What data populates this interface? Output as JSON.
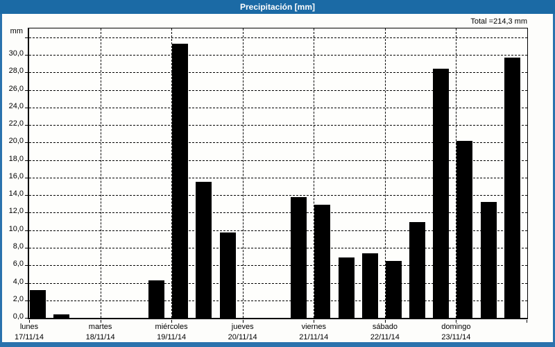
{
  "window": {
    "title": "Precipitación [mm]"
  },
  "summary": {
    "total_label": "Total =214,3 mm"
  },
  "colors": {
    "titlebar_bg": "#1b6aa5",
    "frame_border": "#2a72ad",
    "title_text": "#ffffff",
    "bar": "#000000",
    "grid": "#000000",
    "plot_bg": "#fefefc"
  },
  "chart_data": {
    "type": "bar",
    "title": "Precipitación [mm]",
    "xlabel": "",
    "ylabel": "mm",
    "ylim": [
      0,
      33
    ],
    "ytick_step": 2,
    "grid": true,
    "legend": false,
    "bars_per_day": 3,
    "total_mm": 214.3,
    "yticks": [
      {
        "v": 0,
        "label": "0,0"
      },
      {
        "v": 2,
        "label": "2,0"
      },
      {
        "v": 4,
        "label": "4,0"
      },
      {
        "v": 6,
        "label": "6,0"
      },
      {
        "v": 8,
        "label": "8,0"
      },
      {
        "v": 10,
        "label": "10,0"
      },
      {
        "v": 12,
        "label": "12,0"
      },
      {
        "v": 14,
        "label": "14,0"
      },
      {
        "v": 16,
        "label": "16,0"
      },
      {
        "v": 18,
        "label": "18,0"
      },
      {
        "v": 20,
        "label": "20,0"
      },
      {
        "v": 22,
        "label": "22,0"
      },
      {
        "v": 24,
        "label": "24,0"
      },
      {
        "v": 26,
        "label": "26,0"
      },
      {
        "v": 28,
        "label": "28,0"
      },
      {
        "v": 30,
        "label": "30,0"
      },
      {
        "v": 32,
        "label": ""
      }
    ],
    "days": [
      {
        "name": "lunes",
        "date": "17/11/14",
        "values": [
          3.2,
          0.4,
          0
        ]
      },
      {
        "name": "martes",
        "date": "18/11/14",
        "values": [
          0,
          0,
          4.3
        ]
      },
      {
        "name": "miércoles",
        "date": "19/11/14",
        "values": [
          31.3,
          15.5,
          9.7
        ]
      },
      {
        "name": "jueves",
        "date": "20/11/14",
        "values": [
          0,
          0,
          13.8
        ]
      },
      {
        "name": "viernes",
        "date": "21/11/14",
        "values": [
          12.9,
          6.9,
          7.4
        ]
      },
      {
        "name": "sábado",
        "date": "22/11/14",
        "values": [
          6.5,
          10.9,
          28.4
        ]
      },
      {
        "name": "domingo",
        "date": "23/11/14",
        "values": [
          20.2,
          13.2,
          29.7
        ]
      }
    ]
  }
}
